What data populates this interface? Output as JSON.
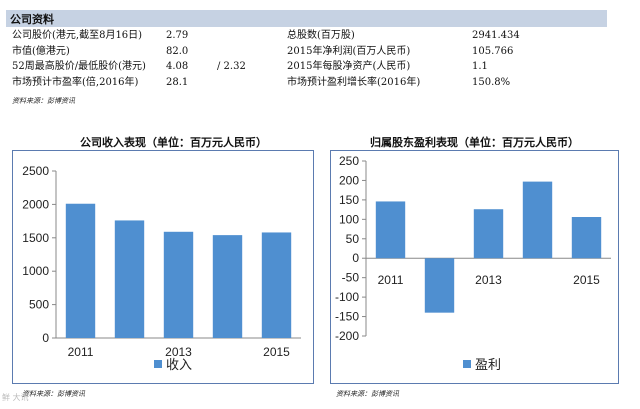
{
  "section_title": "公司资料",
  "info": {
    "rows": [
      {
        "l1": "公司股价(港元,截至8月16日)",
        "v1": "2.79",
        "v1b": "",
        "l2": "总股数(百万股)",
        "v2": "2941.434"
      },
      {
        "l1": "市值(億港元)",
        "v1": "82.0",
        "v1b": "",
        "l2": "2015年净利润(百万人民币)",
        "v2": "105.766"
      },
      {
        "l1": "52周最高股价/最低股价(港元)",
        "v1": "4.08",
        "v1b": "/ 2.32",
        "l2": "2015年每股净资产(人民币)",
        "v2": "1.1"
      },
      {
        "l1": "市场预计市盈率(倍,2016年)",
        "v1": "28.1",
        "v1b": "",
        "l2": "市场预计盈利增长率(2016年)",
        "v2": "150.8%"
      }
    ]
  },
  "source_top": "资料来源：彭博资讯",
  "source_left": "资料来源：彭博资讯",
  "source_right": "资料来源：彭博资讯",
  "watermark": "鲜 大讯",
  "colors": {
    "bar": "#4f8fd0",
    "header": "#c6d2e3",
    "frame": "#5b7bb0"
  },
  "chart_data": [
    {
      "type": "bar",
      "title": "公司收入表现（单位：百万元人民币）",
      "categories": [
        "2011",
        "2012",
        "2013",
        "2014",
        "2015"
      ],
      "x_tick_labels": [
        "2011",
        "",
        "2013",
        "",
        "2015"
      ],
      "values": [
        2010,
        1760,
        1590,
        1540,
        1580
      ],
      "ylim": [
        0,
        2500
      ],
      "yticks": [
        0,
        500,
        1000,
        1500,
        2000,
        2500
      ],
      "legend": "收入",
      "legend_position": "bottom"
    },
    {
      "type": "bar",
      "title": "归属股东盈利表现（单位：百万元人民币）",
      "categories": [
        "2011",
        "2012",
        "2013",
        "2014",
        "2015"
      ],
      "x_tick_labels": [
        "2011",
        "",
        "2013",
        "",
        "2015"
      ],
      "values": [
        146,
        -140,
        126,
        197,
        106
      ],
      "ylim": [
        -200,
        250
      ],
      "yticks": [
        -200,
        -150,
        -100,
        -50,
        0,
        50,
        100,
        150,
        200,
        250
      ],
      "legend": "盈利",
      "legend_position": "bottom"
    }
  ]
}
